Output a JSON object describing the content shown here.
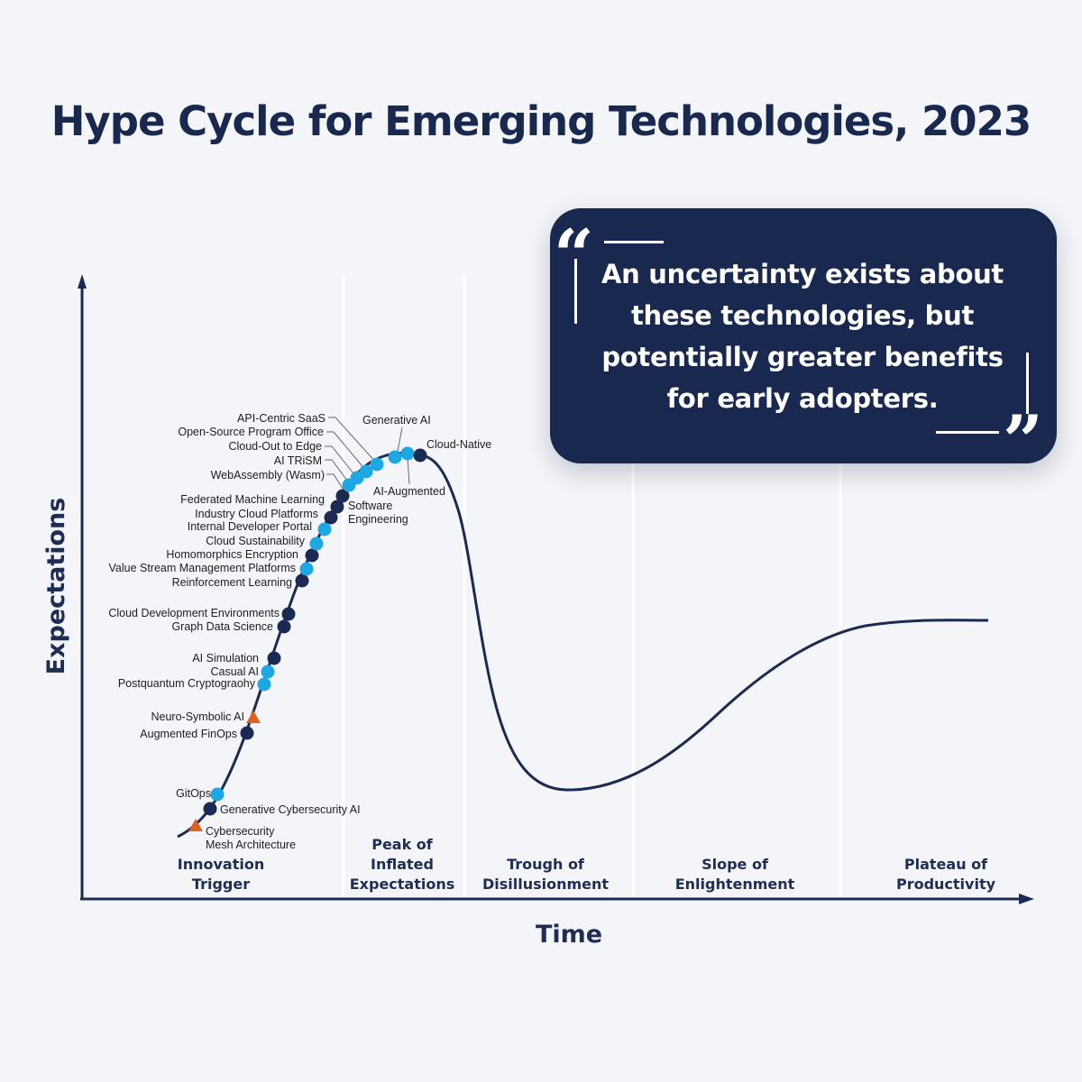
{
  "title": "Hype Cycle for Emerging Technologies, 2023",
  "axes": {
    "y_label": "Expectations",
    "x_label": "Time"
  },
  "phases": [
    [
      "Innovation",
      "Trigger"
    ],
    [
      "Peak of",
      "Inflated",
      "Expectations"
    ],
    [
      "Trough of",
      "Disillusionment"
    ],
    [
      "Slope of",
      "Enlightenment"
    ],
    [
      "Plateau of",
      "Productivity"
    ]
  ],
  "quote": {
    "text": "An uncertainty exists about these technologies, but potentially greater benefits for early adopters."
  },
  "legend_colors": {
    "dark_dot": "#1b2a52",
    "light_dot": "#1da7e3",
    "triangle": "#e0601f",
    "curve": "#1b2a52"
  },
  "chart_data": {
    "type": "hype-cycle",
    "title": "Hype Cycle for Emerging Technologies, 2023",
    "xlabel": "Time",
    "ylabel": "Expectations",
    "phases": [
      "Innovation Trigger",
      "Peak of Inflated Expectations",
      "Trough of Disillusionment",
      "Slope of Enlightenment",
      "Plateau of Productivity"
    ],
    "technologies": [
      {
        "name": "Cybersecurity Mesh Architecture",
        "marker": "triangle"
      },
      {
        "name": "Generative Cybersecurity AI",
        "marker": "dark"
      },
      {
        "name": "GitOps",
        "marker": "light"
      },
      {
        "name": "Augmented FinOps",
        "marker": "dark"
      },
      {
        "name": "Neuro-Symbolic AI",
        "marker": "triangle"
      },
      {
        "name": "Postquantum Cryptograohy",
        "marker": "light"
      },
      {
        "name": "Casual AI",
        "marker": "light"
      },
      {
        "name": "AI Simulation",
        "marker": "dark"
      },
      {
        "name": "Graph Data Science",
        "marker": "dark"
      },
      {
        "name": "Cloud Development Environments",
        "marker": "dark"
      },
      {
        "name": "Reinforcement Learning",
        "marker": "dark"
      },
      {
        "name": "Value Stream Management Platforms",
        "marker": "light"
      },
      {
        "name": "Homomorphics Encryption",
        "marker": "dark"
      },
      {
        "name": "Cloud Sustainability",
        "marker": "light"
      },
      {
        "name": "Internal Developer Portal",
        "marker": "light"
      },
      {
        "name": "Industry Cloud Platforms",
        "marker": "dark"
      },
      {
        "name": "Software Engineering",
        "marker": "dark"
      },
      {
        "name": "Federated Machine Learning",
        "marker": "dark"
      },
      {
        "name": "WebAssembly (Wasm)",
        "marker": "light"
      },
      {
        "name": "AI TRiSM",
        "marker": "light"
      },
      {
        "name": "Cloud-Out to Edge",
        "marker": "light"
      },
      {
        "name": "Open-Source Program Office",
        "marker": "light"
      },
      {
        "name": "API-Centric SaaS",
        "marker": "light"
      },
      {
        "name": "AI-Augmented",
        "marker": "light"
      },
      {
        "name": "Generative AI",
        "marker": "light"
      },
      {
        "name": "Cloud-Native",
        "marker": "dark"
      }
    ]
  }
}
